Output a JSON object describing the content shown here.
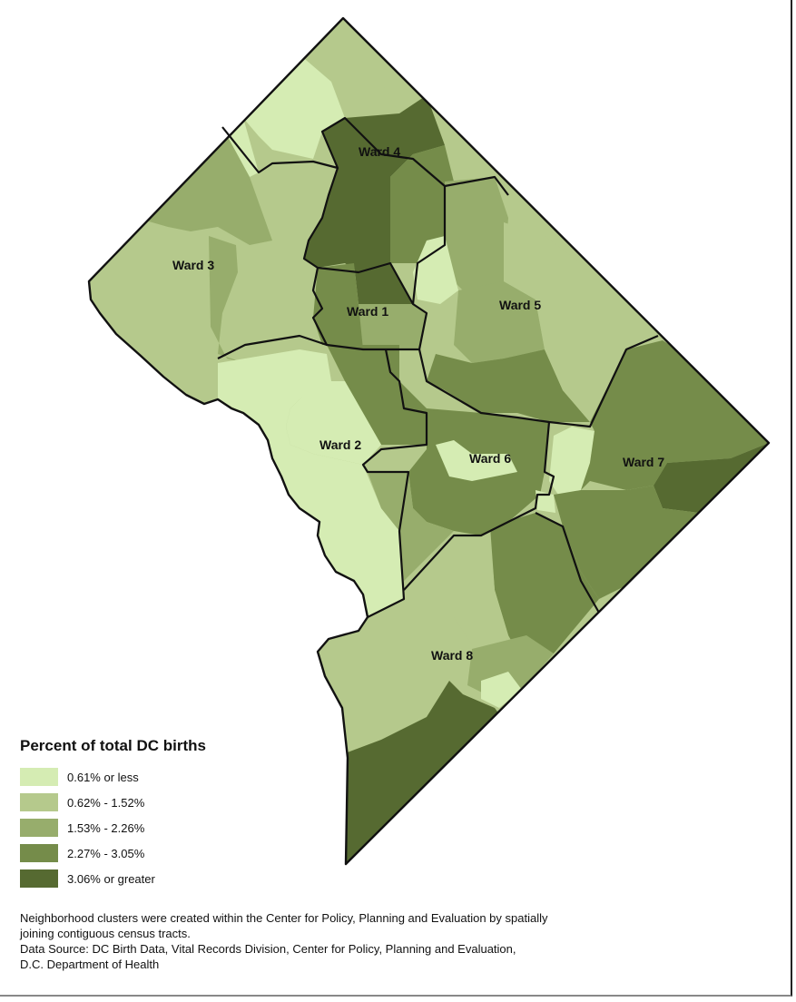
{
  "legend": {
    "title": "Percent of total DC births",
    "classes": [
      {
        "label": "0.61% or less",
        "color": "#d5ecb3"
      },
      {
        "label": "0.62% - 1.52%",
        "color": "#b5c98c"
      },
      {
        "label": "1.53% - 2.26%",
        "color": "#97ad6c"
      },
      {
        "label": "2.27% - 3.05%",
        "color": "#758c4a"
      },
      {
        "label": "3.06% or greater",
        "color": "#566a31"
      }
    ]
  },
  "wards": [
    {
      "label": "Ward 4"
    },
    {
      "label": "Ward 3"
    },
    {
      "label": "Ward 1"
    },
    {
      "label": "Ward 5"
    },
    {
      "label": "Ward 2"
    },
    {
      "label": "Ward 6"
    },
    {
      "label": "Ward 7"
    },
    {
      "label": "Ward 8"
    }
  ],
  "notes": {
    "line1": "Neighborhood clusters were created within the Center for Policy, Planning and Evaluation by spatially",
    "line2": "joining contiguous census tracts.",
    "line3": "Data Source: DC Birth Data, Vital Records Division, Center for Policy, Planning and Evaluation,",
    "line4": "D.C. Department of Health"
  }
}
